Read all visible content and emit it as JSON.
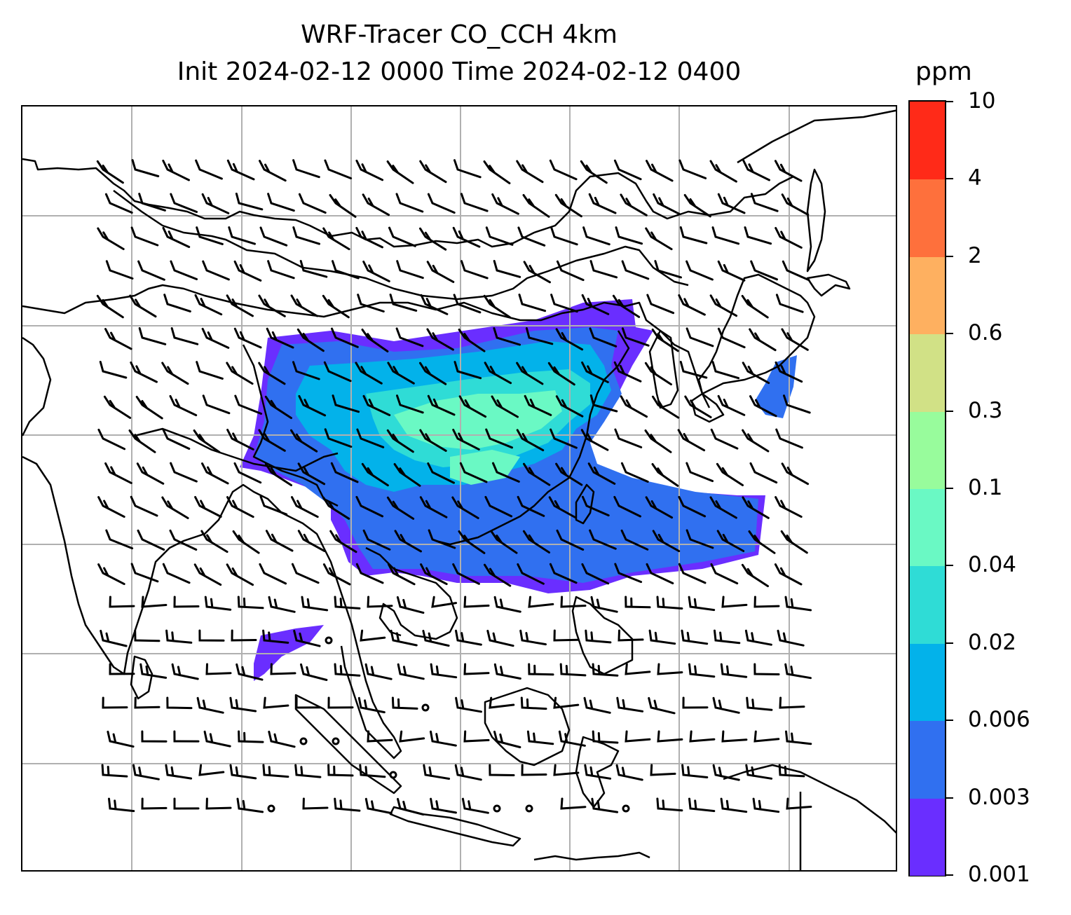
{
  "title": {
    "line1": "WRF-Tracer CO_CCH 4km",
    "line2": "Init 2024-02-12 0000 Time 2024-02-12 0400"
  },
  "colorbar": {
    "unit": "ppm",
    "levels": [
      "0.001",
      "0.003",
      "0.006",
      "0.02",
      "0.04",
      "0.1",
      "0.3",
      "0.6",
      "2",
      "4",
      "10"
    ],
    "colors": [
      "#6a2eff",
      "#3070f0",
      "#03b2ea",
      "#2fdcd6",
      "#6af9c4",
      "#98fc9c",
      "#d1e186",
      "#feb060",
      "#fe703c",
      "#ff2a18"
    ]
  },
  "map": {
    "gridlines": "on",
    "background": "#ffffff",
    "coastline_color": "#000000",
    "gridline_color": "#b0b0b0"
  }
}
